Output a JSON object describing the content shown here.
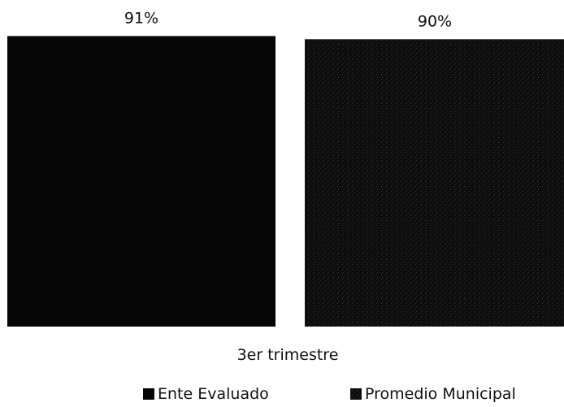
{
  "chart_data": {
    "type": "bar",
    "categories": [
      "3er trimestre"
    ],
    "series": [
      {
        "name": "Ente Evaluado",
        "values": [
          91
        ],
        "value_label": "91%",
        "color": "#050505",
        "pattern": "solid"
      },
      {
        "name": "Promedio Municipal",
        "values": [
          90
        ],
        "value_label": "90%",
        "color": "#0d0d0d",
        "pattern": "speckled"
      }
    ],
    "title": "",
    "xlabel": "",
    "ylabel": "",
    "ylim": [
      0,
      100
    ],
    "grid": false,
    "legend_position": "bottom"
  }
}
